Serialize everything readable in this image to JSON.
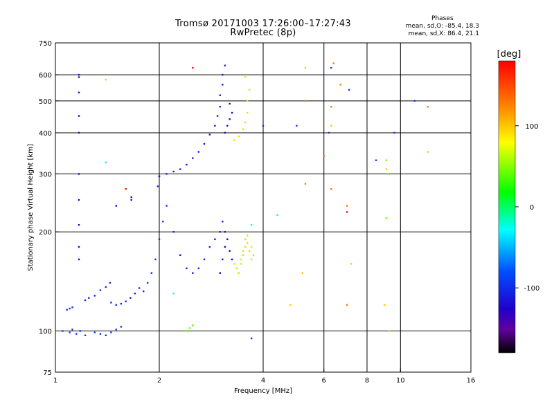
{
  "chart_data": {
    "type": "scatter",
    "title": "Tromsø 20171003 17:26:00–17:27:43",
    "subtitle": "RwPretec (8p)",
    "xlabel": "Frequency [MHz]",
    "ylabel": "Stationary phase Virtual Height [km]",
    "x_scale": "log",
    "y_scale": "log",
    "xlim": [
      1,
      16
    ],
    "ylim": [
      75,
      750
    ],
    "x_ticks": [
      1,
      2,
      4,
      6,
      8,
      10,
      16
    ],
    "y_ticks": [
      75,
      100,
      200,
      300,
      400,
      500,
      600,
      750
    ],
    "grid": true,
    "stats": {
      "heading": "Phases",
      "o_mode": "mean, sd,O: -85.4, 18.3",
      "x_mode": "mean, sd,X: 86.4, 21.1"
    },
    "colorbar": {
      "label": "[deg]",
      "range": [
        -180,
        180
      ],
      "ticks": [
        100,
        0,
        -100
      ],
      "colormap": "rainbow"
    },
    "series": [
      {
        "phase": -95,
        "points": [
          [
            1.05,
            100
          ],
          [
            1.1,
            99
          ],
          [
            1.12,
            101
          ],
          [
            1.15,
            98
          ],
          [
            1.18,
            100
          ],
          [
            1.22,
            97
          ],
          [
            1.3,
            99
          ],
          [
            1.35,
            98
          ],
          [
            1.4,
            97
          ],
          [
            1.45,
            99
          ],
          [
            1.5,
            101
          ],
          [
            1.55,
            103
          ]
        ]
      },
      {
        "phase": -100,
        "points": [
          [
            1.08,
            116
          ],
          [
            1.1,
            117
          ],
          [
            1.12,
            118
          ],
          [
            1.22,
            124
          ],
          [
            1.25,
            126
          ],
          [
            1.3,
            128
          ],
          [
            1.35,
            133
          ],
          [
            1.4,
            136
          ],
          [
            1.44,
            140
          ],
          [
            1.45,
            122
          ],
          [
            1.5,
            120
          ],
          [
            1.55,
            121
          ],
          [
            1.6,
            123
          ],
          [
            1.65,
            126
          ],
          [
            1.7,
            130
          ],
          [
            1.75,
            135
          ],
          [
            1.8,
            132
          ],
          [
            1.85,
            140
          ],
          [
            1.9,
            150
          ],
          [
            1.95,
            165
          ],
          [
            2.0,
            190
          ],
          [
            2.05,
            215
          ],
          [
            2.1,
            240
          ],
          [
            1.98,
            275
          ],
          [
            2.0,
            295
          ]
        ]
      },
      {
        "phase": -120,
        "points": [
          [
            1.17,
            400
          ],
          [
            1.17,
            450
          ],
          [
            1.17,
            530
          ],
          [
            1.17,
            590
          ],
          [
            1.17,
            600
          ],
          [
            1.17,
            300
          ],
          [
            1.17,
            250
          ],
          [
            1.17,
            210
          ],
          [
            1.17,
            180
          ],
          [
            1.17,
            165
          ],
          [
            1.5,
            240
          ],
          [
            1.66,
            255
          ],
          [
            1.66,
            250
          ]
        ]
      },
      {
        "phase": -110,
        "points": [
          [
            2.0,
            295
          ],
          [
            2.1,
            300
          ],
          [
            2.2,
            305
          ],
          [
            2.3,
            310
          ],
          [
            2.4,
            320
          ],
          [
            2.5,
            335
          ],
          [
            2.6,
            350
          ],
          [
            2.7,
            370
          ],
          [
            2.8,
            395
          ],
          [
            2.9,
            420
          ],
          [
            2.95,
            450
          ],
          [
            3.0,
            480
          ],
          [
            3.0,
            520
          ],
          [
            3.05,
            560
          ],
          [
            3.05,
            600
          ],
          [
            3.1,
            640
          ]
        ]
      },
      {
        "phase": -105,
        "points": [
          [
            2.2,
            200
          ],
          [
            2.3,
            170
          ],
          [
            2.4,
            155
          ],
          [
            2.5,
            150
          ],
          [
            2.6,
            155
          ],
          [
            2.7,
            165
          ],
          [
            2.8,
            180
          ],
          [
            2.9,
            190
          ],
          [
            3.0,
            200
          ],
          [
            3.05,
            215
          ]
        ]
      },
      {
        "phase": -130,
        "points": [
          [
            3.0,
            150
          ],
          [
            3.05,
            165
          ],
          [
            3.1,
            180
          ],
          [
            3.1,
            200
          ],
          [
            3.15,
            190
          ],
          [
            3.2,
            175
          ],
          [
            3.25,
            165
          ],
          [
            3.1,
            400
          ],
          [
            3.15,
            420
          ],
          [
            3.2,
            440
          ],
          [
            3.25,
            460
          ],
          [
            3.2,
            490
          ]
        ]
      },
      {
        "phase": 95,
        "points": [
          [
            3.3,
            380
          ],
          [
            3.4,
            390
          ],
          [
            3.5,
            410
          ],
          [
            3.55,
            430
          ],
          [
            3.6,
            460
          ],
          [
            3.6,
            500
          ],
          [
            3.65,
            540
          ],
          [
            3.55,
            590
          ],
          [
            3.45,
            160
          ],
          [
            3.5,
            170
          ],
          [
            3.55,
            180
          ],
          [
            3.6,
            185
          ],
          [
            3.65,
            175
          ],
          [
            3.7,
            165
          ],
          [
            3.75,
            170
          ]
        ]
      },
      {
        "phase": 60,
        "points": [
          [
            3.3,
            160
          ],
          [
            3.35,
            155
          ],
          [
            3.4,
            150
          ],
          [
            3.45,
            165
          ],
          [
            3.5,
            175
          ],
          [
            3.55,
            190
          ],
          [
            3.6,
            195
          ],
          [
            3.7,
            180
          ]
        ]
      },
      {
        "phase": -95,
        "points": [
          [
            4.0,
            420
          ],
          [
            5.0,
            420
          ],
          [
            6.2,
            400
          ],
          [
            6.3,
            630
          ],
          [
            7.1,
            540
          ],
          [
            8.5,
            330
          ],
          [
            9.6,
            400
          ],
          [
            11.0,
            500
          ],
          [
            3.7,
            95
          ]
        ]
      },
      {
        "phase": 130,
        "points": [
          [
            6.4,
            650
          ],
          [
            6.7,
            560
          ],
          [
            7.0,
            240
          ],
          [
            6.0,
            340
          ],
          [
            6.3,
            270
          ],
          [
            5.3,
            500
          ],
          [
            5.3,
            280
          ],
          [
            6.3,
            480
          ],
          [
            7.0,
            120
          ],
          [
            12.0,
            480
          ]
        ]
      },
      {
        "phase": 100,
        "points": [
          [
            1.4,
            580
          ],
          [
            5.3,
            630
          ],
          [
            4.8,
            120
          ],
          [
            5.2,
            150
          ],
          [
            6.3,
            420
          ],
          [
            7.2,
            160
          ],
          [
            9.1,
            310
          ],
          [
            9.0,
            120
          ],
          [
            9.3,
            100
          ],
          [
            12.0,
            350
          ]
        ]
      },
      {
        "phase": 40,
        "points": [
          [
            9.1,
            330
          ],
          [
            9.2,
            300
          ],
          [
            9.1,
            220
          ],
          [
            2.4,
            100
          ],
          [
            2.45,
            102
          ],
          [
            2.5,
            104
          ]
        ]
      },
      {
        "phase": -20,
        "points": [
          [
            4.4,
            225
          ],
          [
            3.7,
            210
          ],
          [
            1.4,
            325
          ],
          [
            2.2,
            130
          ]
        ]
      },
      {
        "phase": 175,
        "points": [
          [
            2.5,
            630
          ],
          [
            1.6,
            270
          ],
          [
            7.0,
            230
          ]
        ]
      }
    ]
  }
}
